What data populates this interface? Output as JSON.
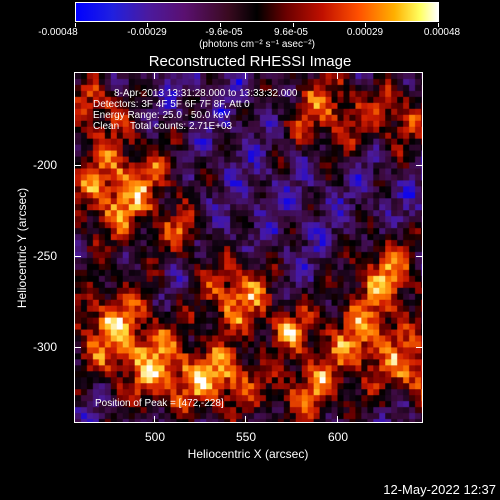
{
  "colorbar": {
    "tick_labels": [
      "-0.00048",
      "-0.00029",
      "-9.6e-05",
      "9.6e-05",
      "0.00029",
      "0.00048"
    ],
    "units": "(photons cm⁻² s⁻¹ asec⁻²)"
  },
  "title": "Reconstructed RHESSI Image",
  "info": {
    "time_range": "8-Apr-2013 13:31:28.000 to 13:33:32.000",
    "detectors": "Detectors: 3F 4F 5F 6F 7F 8F, Att 0",
    "energy": "Energy Range: 25.0 - 50.0 keV",
    "method": "Clean    Total counts: 2.71E+03",
    "peak": "Position of Peak = [472,-228]"
  },
  "axes": {
    "xlabel": "Heliocentric X (arcsec)",
    "ylabel": "Heliocentric Y (arcsec)",
    "xticks": [
      "500",
      "550",
      "600"
    ],
    "yticks": [
      "-200",
      "-250",
      "-300"
    ]
  },
  "timestamp": "12-May-2022 12:37"
}
